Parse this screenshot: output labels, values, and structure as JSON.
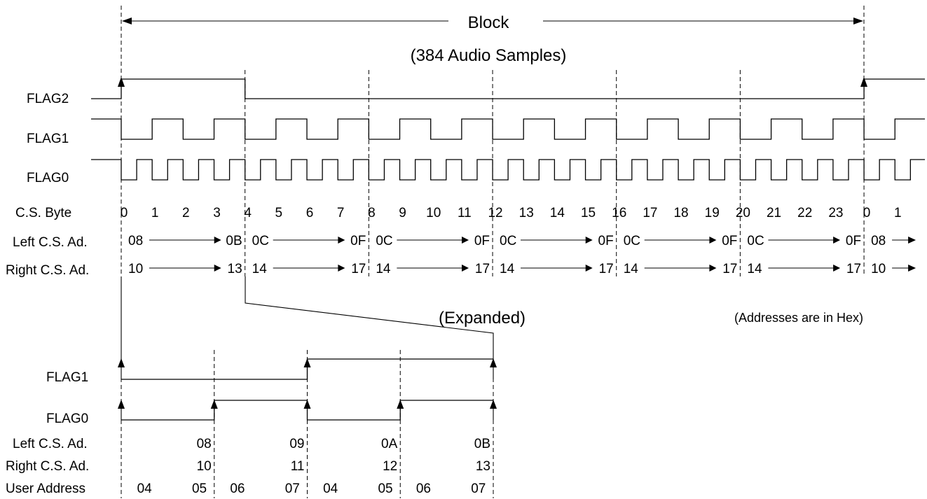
{
  "block": {
    "title": "Block",
    "subtitle": "(384 Audio Samples)"
  },
  "signals": {
    "flag2": "FLAG2",
    "flag1": "FLAG1",
    "flag0": "FLAG0"
  },
  "rows": {
    "cs_byte": "C.S. Byte",
    "left_cs": "Left C.S. Ad.",
    "right_cs": "Right C.S. Ad.",
    "user_address": "User Address"
  },
  "cs_bytes": [
    "0",
    "1",
    "2",
    "3",
    "4",
    "5",
    "6",
    "7",
    "8",
    "9",
    "10",
    "11",
    "12",
    "13",
    "14",
    "15",
    "16",
    "17",
    "18",
    "19",
    "20",
    "21",
    "22",
    "23",
    "0",
    "1"
  ],
  "left_ranges": [
    [
      "08",
      "0B"
    ],
    [
      "0C",
      "0F"
    ],
    [
      "0C",
      "0F"
    ],
    [
      "0C",
      "0F"
    ],
    [
      "0C",
      "0F"
    ],
    [
      "0C",
      "0F"
    ]
  ],
  "right_ranges": [
    [
      "10",
      "13"
    ],
    [
      "14",
      "17"
    ],
    [
      "14",
      "17"
    ],
    [
      "14",
      "17"
    ],
    [
      "14",
      "17"
    ],
    [
      "14",
      "17"
    ]
  ],
  "left_next": "08",
  "right_next": "10",
  "expanded_label": "(Expanded)",
  "hex_note": "(Addresses are in Hex)",
  "expanded": {
    "flag1": "FLAG1",
    "flag0": "FLAG0",
    "left_label": "Left C.S. Ad.",
    "right_label": "Right C.S. Ad.",
    "user_label": "User Address",
    "left_values": [
      "08",
      "09",
      "0A",
      "0B"
    ],
    "right_values": [
      "10",
      "11",
      "12",
      "13"
    ],
    "user_values": [
      "04",
      "05",
      "06",
      "07",
      "04",
      "05",
      "06",
      "07"
    ]
  }
}
